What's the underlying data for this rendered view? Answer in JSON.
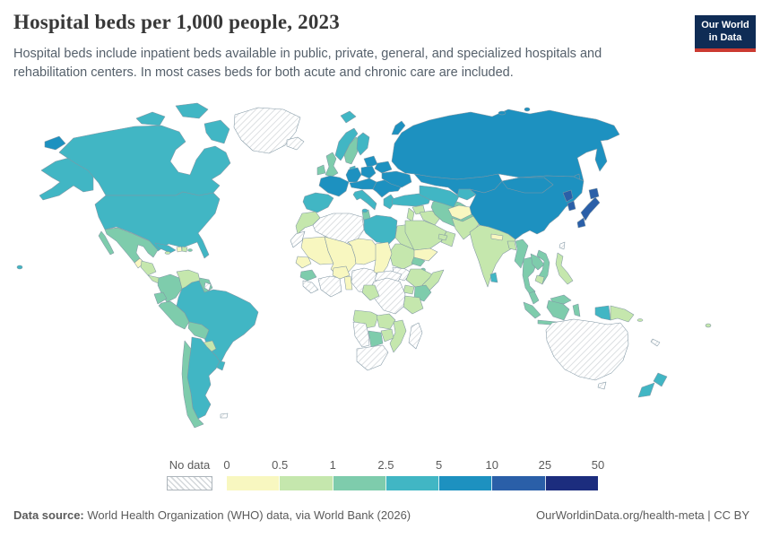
{
  "header": {
    "title": "Hospital beds per 1,000 people, 2023",
    "subtitle": "Hospital beds include inpatient beds available in public, private, general, and specialized hospitals and rehabilitation centers. In most cases beds for both acute and chronic care are included.",
    "logo": {
      "line1": "Our World",
      "line2": "in Data"
    }
  },
  "legend": {
    "no_data_label": "No data",
    "tick_labels": [
      "0",
      "0.5",
      "1",
      "2.5",
      "5",
      "10",
      "25",
      "50"
    ]
  },
  "footer": {
    "source_label": "Data source:",
    "source_rest": " World Health Organization (WHO) data, via World Bank (2026)",
    "license": "OurWorldinData.org/health-meta | CC BY"
  },
  "colors": {
    "logo_bg": "#0f2c55",
    "logo_bar": "#cb3a31",
    "title_text": "#383838",
    "muted_text": "#5b5b5b",
    "map_border": "#8197a4"
  },
  "chart_data": {
    "type": "choropleth_map",
    "title": "Hospital beds per 1,000 people, 2023",
    "year": 2023,
    "unit": "hospital beds per 1,000 people",
    "legend_position": "bottom-left",
    "bins": [
      {
        "label": "0-0.5",
        "color": "#f8f7c0"
      },
      {
        "label": "0.5-1",
        "color": "#c5e7ad"
      },
      {
        "label": "1-2.5",
        "color": "#7eccac"
      },
      {
        "label": "2.5-5",
        "color": "#41b6c4"
      },
      {
        "label": "5-10",
        "color": "#1d91c0"
      },
      {
        "label": "10-25",
        "color": "#2a5fa8"
      },
      {
        "label": "25-50",
        "color": "#1c2d7e"
      }
    ],
    "no_data": {
      "label": "No data",
      "style": "diagonal-hatch"
    },
    "countries": {
      "guatemala": "0-0.5",
      "haiti": "0-0.5",
      "mauritania": "0-0.5",
      "mali": "0-0.5",
      "senegal": "0-0.5",
      "burkina-faso": "0-0.5",
      "benin-togo": "0-0.5",
      "niger": "0-0.5",
      "chad": "0-0.5",
      "yemen": "0-0.5",
      "afghanistan": "0-0.5",
      "nepal": "0-0.5",
      "honduras-nicaragua": "0.5-1",
      "costa-rica-panama": "0.5-1",
      "dominican-republic": "0.5-1",
      "jamaica": "0.5-1",
      "venezuela": "0.5-1",
      "paraguay": "0.5-1",
      "morocco": "0.5-1",
      "egypt": "0.5-1",
      "sudan": "0.5-1",
      "ethiopia": "0.5-1",
      "somalia": "0.5-1",
      "uganda": "0.5-1",
      "tanzania": "0.5-1",
      "congo-gabon": "0.5-1",
      "angola": "0.5-1",
      "zambia": "0.5-1",
      "mozambique": "0.5-1",
      "zimbabwe": "0.5-1",
      "syria": "0.5-1",
      "levant": "0.5-1",
      "iraq": "0.5-1",
      "saudi-arabia": "0.5-1",
      "oman": "0.5-1",
      "uae": "0.5-1",
      "pakistan": "0.5-1",
      "india": "0.5-1",
      "bangladesh": "0.5-1",
      "cambodia": "0.5-1",
      "philippines": "0.5-1",
      "papua-new-guinea": "0.5-1",
      "fiji": "0.5-1",
      "solomon-islands": "0.5-1",
      "mexico": "1-2.5",
      "colombia": "1-2.5",
      "guyana": "1-2.5",
      "ecuador": "1-2.5",
      "peru": "1-2.5",
      "bolivia": "1-2.5",
      "chile": "1-2.5",
      "puerto-rico": "1-2.5",
      "guinea": "1-2.5",
      "eritrea": "1-2.5",
      "djibouti": "1-2.5",
      "kenya": "1-2.5",
      "botswana": "1-2.5",
      "tunisia": "1-2.5",
      "iran": "1-2.5",
      "uk": "1-2.5",
      "ireland": "1-2.5",
      "sweden": "1-2.5",
      "myanmar": "1-2.5",
      "thailand": "1-2.5",
      "laos": "1-2.5",
      "vietnam": "1-2.5",
      "malaysia": "1-2.5",
      "indonesia": "1-2.5",
      "canada": "2.5-5",
      "usa": "2.5-5",
      "cuba": "2.5-5",
      "brazil": "2.5-5",
      "argentina": "2.5-5",
      "uruguay": "2.5-5",
      "libya": "2.5-5",
      "norway": "2.5-5",
      "finland": "2.5-5",
      "denmark": "2.5-5",
      "svalbard": "2.5-5",
      "iberia": "2.5-5",
      "italy": "2.5-5",
      "greece": "2.5-5",
      "turkey": "2.5-5",
      "caucasus": "2.5-5",
      "sri-lanka": "2.5-5",
      "central-asia": "2.5-5",
      "kyrgyz-tajik": "2.5-5",
      "west-papua": "2.5-5",
      "new-zealand": "2.5-5",
      "france": "5-10",
      "germany": "5-10",
      "poland": "5-10",
      "central-europe": "5-10",
      "balkans": "5-10",
      "ukraine": "5-10",
      "belarus": "5-10",
      "baltics": "5-10",
      "russia": "5-10",
      "kazakhstan": "5-10",
      "china": "5-10",
      "mongolia": "5-10",
      "japan": "10-25",
      "north-korea": "10-25",
      "south-korea": "10-25",
      "greenland": "no-data",
      "iceland": "no-data",
      "algeria": "no-data",
      "western-sahara": "no-data",
      "sierra-leone-liberia": "no-data",
      "ivory-coast-ghana": "no-data",
      "nigeria": "no-data",
      "cameroon-car": "no-data",
      "south-sudan": "no-data",
      "drc": "no-data",
      "namibia": "no-data",
      "south-africa": "no-data",
      "madagascar": "no-data",
      "suriname": "no-data",
      "taiwan": "no-data",
      "australia": "no-data",
      "tasmania": "no-data",
      "falkland-islands": "no-data",
      "new-caledonia": "no-data"
    }
  }
}
